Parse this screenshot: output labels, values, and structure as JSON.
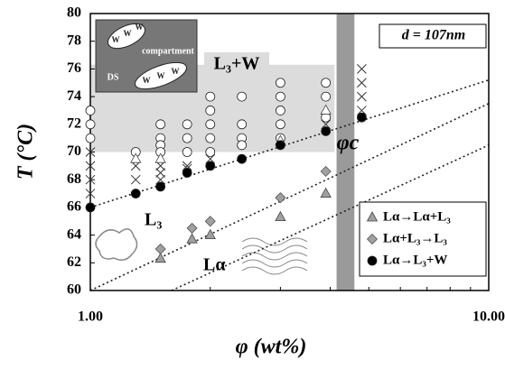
{
  "chart_data": {
    "type": "scatter",
    "xlabel": "φ (wt%)",
    "ylabel": "T (°C)",
    "xlog": true,
    "xlim": [
      1,
      10
    ],
    "ylim": [
      60,
      80
    ],
    "xticks": [
      {
        "value": 1,
        "label": "1.00"
      },
      {
        "value": 10,
        "label": "10.00"
      }
    ],
    "xminorticks": [
      2,
      3,
      4,
      5,
      6,
      7,
      8,
      9
    ],
    "yticks": [
      60,
      62,
      64,
      66,
      68,
      70,
      72,
      74,
      76,
      78,
      80
    ],
    "legend": "lower right",
    "bands": [
      {
        "x": [
          1.0,
          4.1
        ],
        "y": [
          70,
          76.3
        ],
        "color": "#dcdcdc"
      },
      {
        "x": [
          4.15,
          4.6
        ],
        "y": [
          60,
          80
        ],
        "color": "#9a9a9a"
      }
    ],
    "lines": [
      {
        "x": [
          1,
          10
        ],
        "y": [
          66,
          75.2
        ]
      },
      {
        "x": [
          1,
          10
        ],
        "y": [
          60,
          73.5
        ]
      },
      {
        "x": [
          1.6,
          10
        ],
        "y": [
          60,
          70.5
        ]
      }
    ],
    "series": [
      {
        "marker": "circle-open",
        "color": "#ffffff",
        "x": [
          1.0,
          1.0,
          1.0,
          1.3,
          1.5,
          1.5,
          1.5,
          1.5,
          1.75,
          1.75,
          1.75,
          2.0,
          2.0,
          2.0,
          2.0,
          2.0,
          2.4,
          2.4,
          2.4,
          2.4,
          3.0,
          3.0,
          3.0,
          3.0,
          3.0,
          3.9,
          3.9,
          3.9
        ],
        "values": [
          73,
          72,
          71,
          70,
          72,
          71,
          70.5,
          70,
          72,
          71,
          70,
          74,
          73,
          72,
          71,
          70,
          74,
          72,
          71,
          70.5,
          75,
          74,
          73,
          72,
          71,
          75,
          74,
          72.5
        ]
      },
      {
        "marker": "cross",
        "color": "#333333",
        "x": [
          1.0,
          1.0,
          1.0,
          1.0,
          1.3,
          1.3,
          1.5,
          1.5,
          1.5,
          1.75,
          1.75,
          2.0,
          3.9,
          4.8,
          4.8,
          4.8,
          4.8
        ],
        "values": [
          70,
          69,
          68,
          67,
          69,
          68,
          69,
          68.5,
          68,
          69,
          68.8,
          69.5,
          72,
          76,
          75,
          74,
          73
        ]
      },
      {
        "marker": "triangle-open",
        "color": "#ffffff",
        "x": [
          1.3,
          1.5,
          3.0,
          3.9
        ],
        "values": [
          69.5,
          69.5,
          70.8,
          73
        ]
      },
      {
        "name": "Lα→Lα+L₃",
        "marker": "triangle",
        "color": "#a0a0a0",
        "x": [
          1.5,
          1.8,
          2.0,
          3.0,
          3.9
        ],
        "values": [
          62.3,
          63.7,
          64,
          65.3,
          67
        ]
      },
      {
        "name": "Lα+L₃→L₃",
        "marker": "diamond",
        "color": "#a0a0a0",
        "x": [
          1.5,
          1.8,
          2.0,
          3.0,
          3.9
        ],
        "values": [
          63,
          64.5,
          65,
          66.7,
          68.6
        ]
      },
      {
        "name": "Lα→L₃+W",
        "marker": "circle",
        "color": "#000000",
        "x": [
          1.0,
          1.3,
          1.5,
          1.75,
          2.0,
          2.4,
          3.0,
          3.9,
          4.8
        ],
        "values": [
          66,
          67,
          67.5,
          68.5,
          69,
          69.5,
          70.5,
          71.5,
          72.5
        ]
      }
    ],
    "annotations": [
      "d = 107nm",
      "L₃+W",
      "φc",
      "L₃",
      "Lα"
    ],
    "inset": {
      "labels": [
        "W",
        "W",
        "W",
        "W",
        "W",
        "W",
        "compartment",
        "DS"
      ]
    }
  }
}
